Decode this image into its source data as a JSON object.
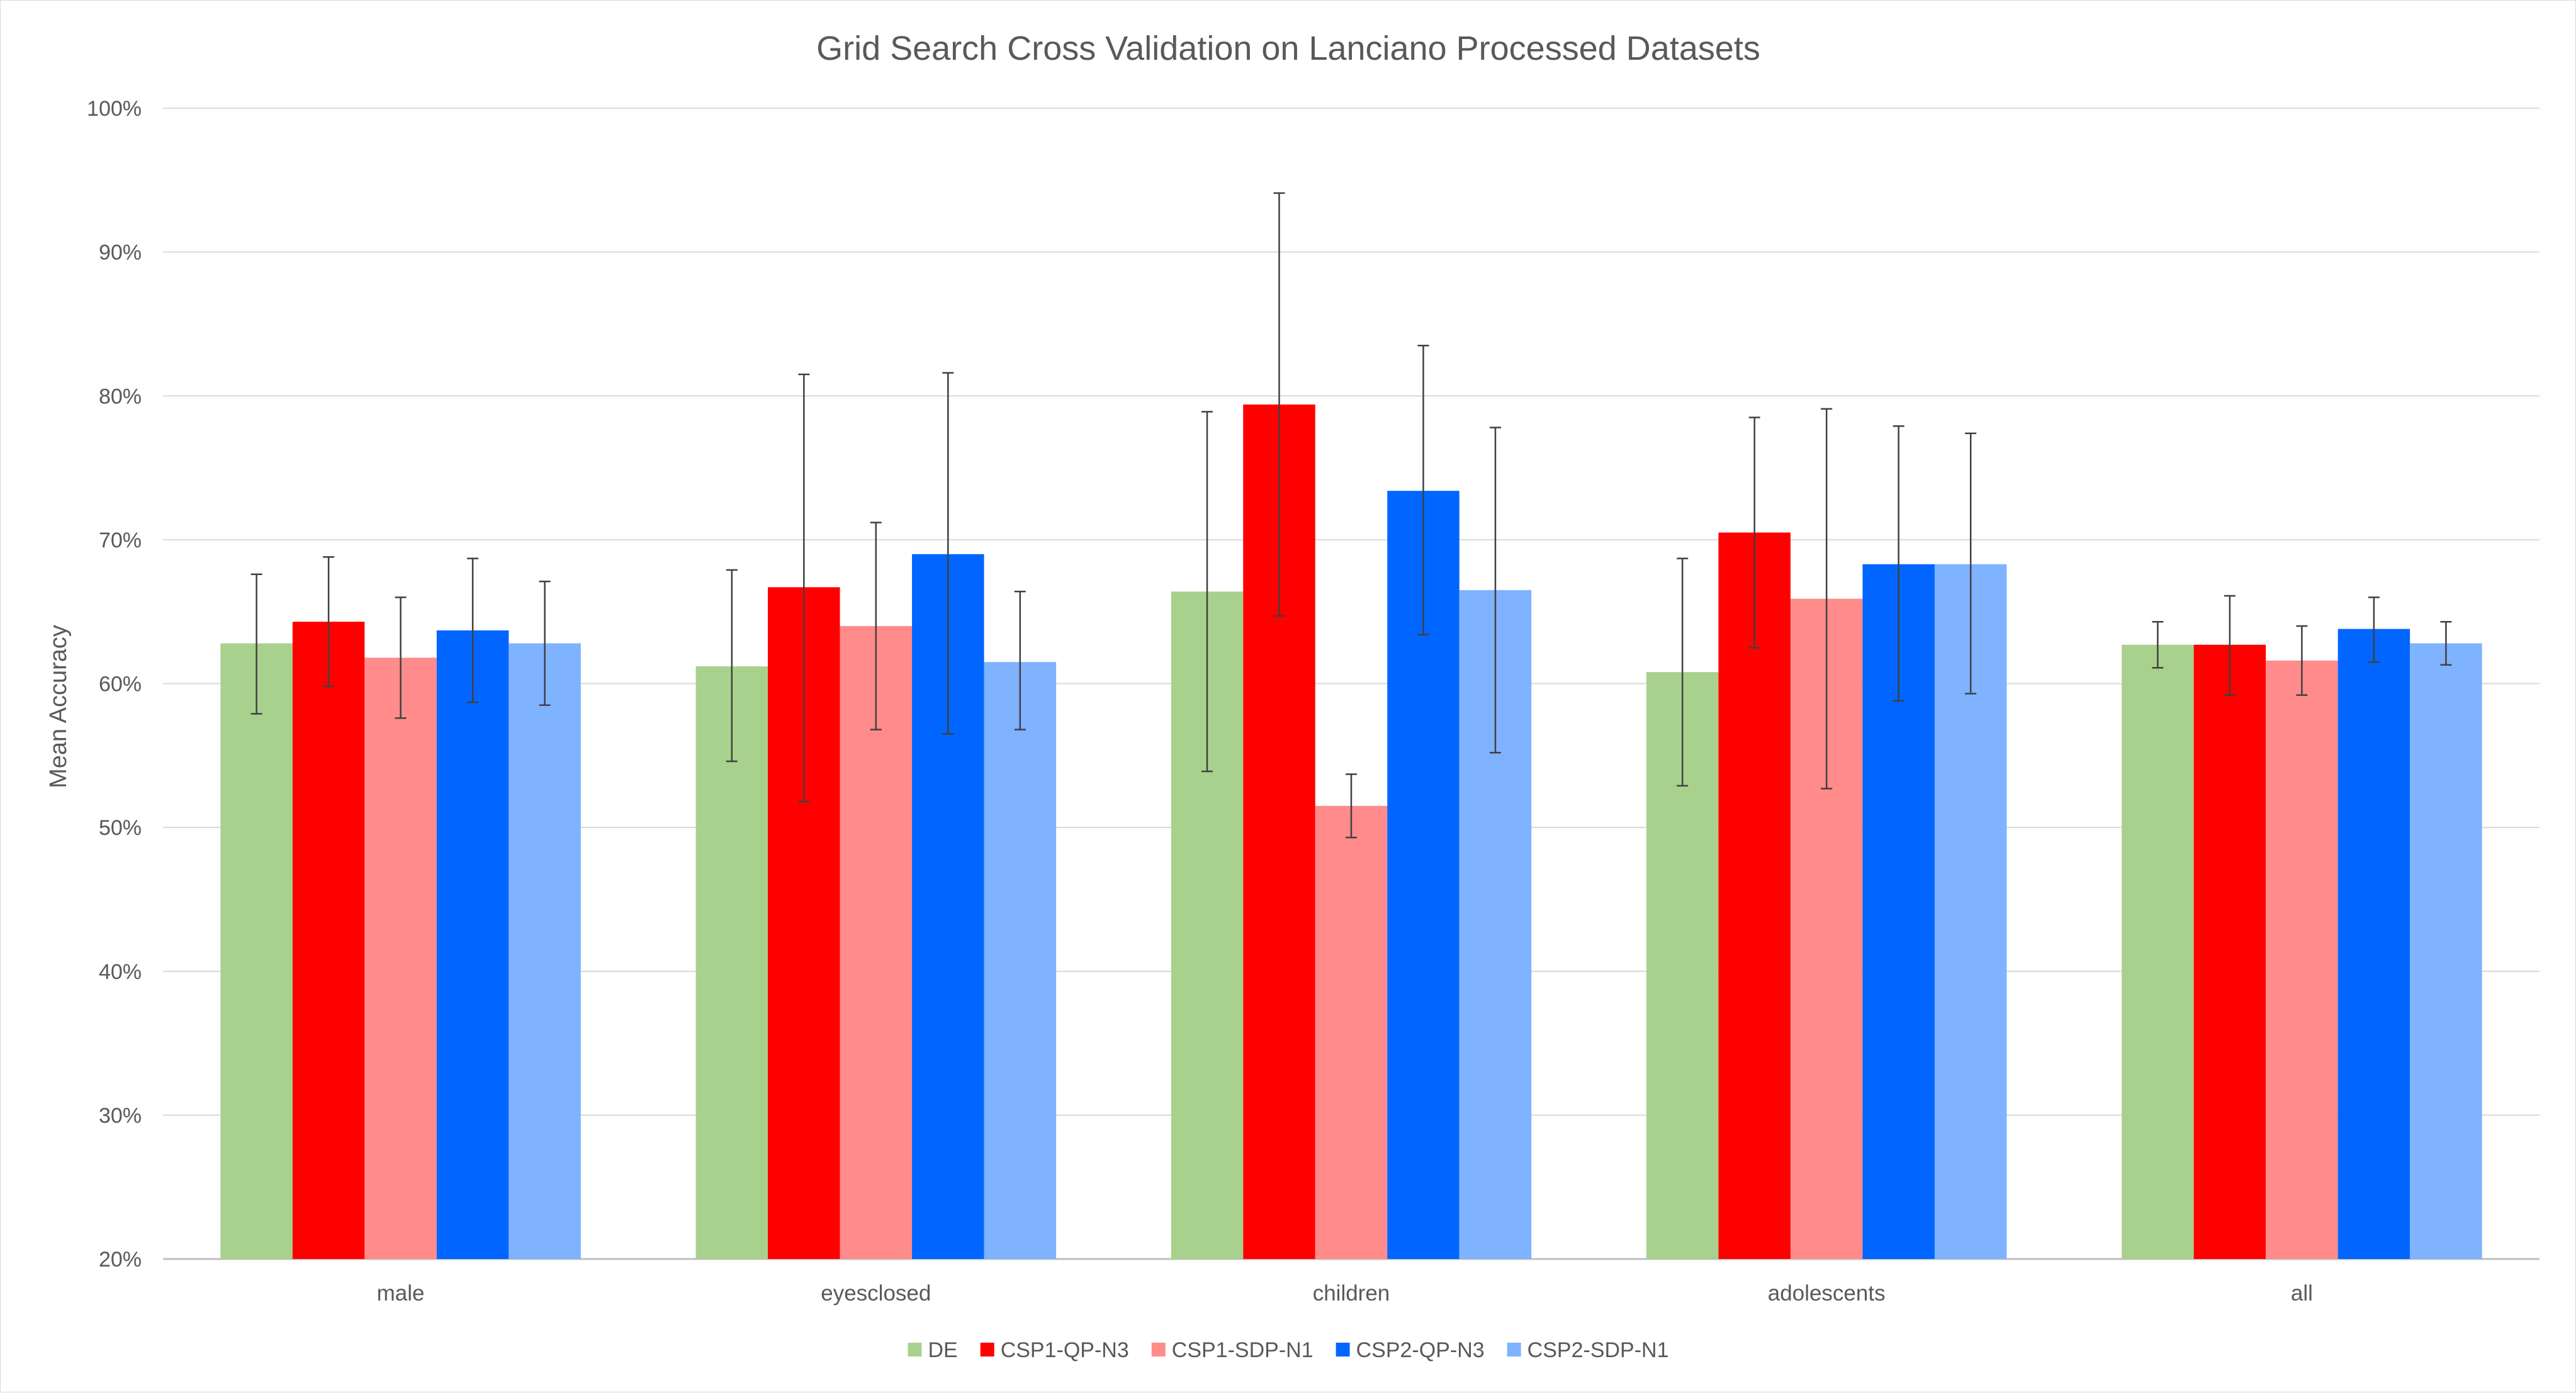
{
  "chart_data": {
    "type": "bar",
    "title": "Grid Search Cross Validation on Lanciano Processed Datasets",
    "xlabel": "",
    "ylabel": "Mean Accuracy",
    "ylim": [
      20,
      100
    ],
    "y_ticks": [
      20,
      30,
      40,
      50,
      60,
      70,
      80,
      90,
      100
    ],
    "y_tick_labels": [
      "20%",
      "30%",
      "40%",
      "50%",
      "60%",
      "70%",
      "80%",
      "90%",
      "100%"
    ],
    "categories": [
      "male",
      "eyesclosed",
      "children",
      "adolescents",
      "all"
    ],
    "grid": true,
    "legend": "bottom",
    "series": [
      {
        "name": "DE",
        "color": "#a9d18e",
        "values": [
          62.8,
          61.2,
          66.4,
          60.8,
          62.7
        ],
        "err_low": [
          57.9,
          54.6,
          53.9,
          52.9,
          61.1
        ],
        "err_high": [
          67.6,
          67.9,
          78.9,
          68.7,
          64.3
        ]
      },
      {
        "name": "CSP1-QP-N3",
        "color": "#ff0000",
        "values": [
          64.3,
          66.7,
          79.4,
          70.5,
          62.7
        ],
        "err_low": [
          59.8,
          51.8,
          64.7,
          62.5,
          59.2
        ],
        "err_high": [
          68.8,
          81.5,
          94.1,
          78.5,
          66.1
        ]
      },
      {
        "name": "CSP1-SDP-N1",
        "color": "#ff8b8b",
        "values": [
          61.8,
          64.0,
          51.5,
          65.9,
          61.6
        ],
        "err_low": [
          57.6,
          56.8,
          49.3,
          52.7,
          59.2
        ],
        "err_high": [
          66.0,
          71.2,
          53.7,
          79.1,
          64.0
        ]
      },
      {
        "name": "CSP2-QP-N3",
        "color": "#0066ff",
        "values": [
          63.7,
          69.0,
          73.4,
          68.3,
          63.8
        ],
        "err_low": [
          58.7,
          56.5,
          63.4,
          58.8,
          61.5
        ],
        "err_high": [
          68.7,
          81.6,
          83.5,
          77.9,
          66.0
        ]
      },
      {
        "name": "CSP2-SDP-N1",
        "color": "#7fb2ff",
        "values": [
          62.8,
          61.5,
          66.5,
          68.3,
          62.8
        ],
        "err_low": [
          58.5,
          56.8,
          55.2,
          59.3,
          61.3
        ],
        "err_high": [
          67.1,
          66.4,
          77.8,
          77.4,
          64.3
        ]
      }
    ]
  }
}
